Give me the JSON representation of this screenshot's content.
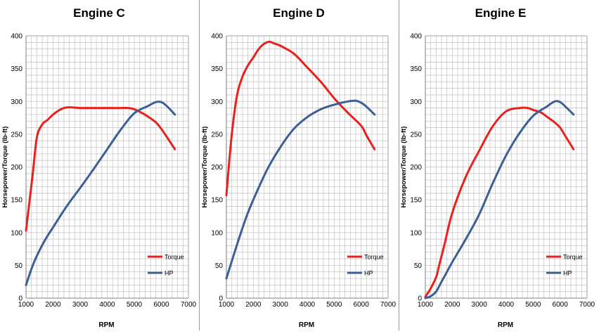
{
  "chart_data": [
    {
      "type": "line",
      "title": "Engine C",
      "xlabel": "RPM",
      "ylabel": "Horsepower/Torque (lb-ft)",
      "xlim": [
        1000,
        7000
      ],
      "ylim": [
        0,
        400
      ],
      "x_ticks": [
        1000,
        2000,
        3000,
        4000,
        5000,
        6000,
        7000
      ],
      "y_ticks": [
        0,
        50,
        100,
        150,
        200,
        250,
        300,
        350,
        400
      ],
      "grid": true,
      "legend_position": "bottom-right",
      "series": [
        {
          "name": "Torque",
          "color": "#e8211d",
          "x": [
            1000,
            1250,
            1400,
            1600,
            1800,
            2000,
            2200,
            2400,
            2600,
            3000,
            3500,
            4000,
            4500,
            4800,
            5000,
            5300,
            5500,
            5800,
            6000,
            6200,
            6500
          ],
          "y": [
            103,
            190,
            245,
            265,
            272,
            280,
            286,
            290,
            291,
            290,
            290,
            290,
            290,
            290,
            288,
            282,
            277,
            268,
            258,
            246,
            227
          ]
        },
        {
          "name": "HP",
          "color": "#3c5f95",
          "x": [
            1000,
            1250,
            1500,
            1750,
            2000,
            2500,
            3000,
            3500,
            4000,
            4500,
            5000,
            5500,
            5800,
            6000,
            6200,
            6500
          ],
          "y": [
            20,
            50,
            73,
            92,
            108,
            140,
            168,
            197,
            227,
            257,
            282,
            293,
            299,
            299,
            293,
            280
          ]
        }
      ]
    },
    {
      "type": "line",
      "title": "Engine D",
      "xlabel": "RPM",
      "ylabel": "Horsepower/Torque (lb-ft)",
      "xlim": [
        1000,
        7000
      ],
      "ylim": [
        0,
        400
      ],
      "x_ticks": [
        1000,
        2000,
        3000,
        4000,
        5000,
        6000,
        7000
      ],
      "y_ticks": [
        0,
        50,
        100,
        150,
        200,
        250,
        300,
        350,
        400
      ],
      "grid": true,
      "legend_position": "bottom-right",
      "series": [
        {
          "name": "Torque",
          "color": "#e8211d",
          "x": [
            1000,
            1200,
            1400,
            1600,
            1800,
            2000,
            2200,
            2400,
            2600,
            2800,
            3000,
            3500,
            4000,
            4500,
            5000,
            5500,
            6000,
            6200,
            6500
          ],
          "y": [
            157,
            250,
            310,
            338,
            355,
            367,
            380,
            388,
            391,
            388,
            385,
            373,
            352,
            330,
            305,
            283,
            263,
            248,
            227
          ]
        },
        {
          "name": "HP",
          "color": "#3c5f95",
          "x": [
            1000,
            1250,
            1500,
            1750,
            2000,
            2500,
            3000,
            3500,
            4000,
            4500,
            5000,
            5500,
            5800,
            6000,
            6200,
            6500
          ],
          "y": [
            30,
            63,
            95,
            125,
            150,
            195,
            230,
            258,
            276,
            288,
            295,
            300,
            301,
            298,
            292,
            280
          ]
        }
      ]
    },
    {
      "type": "line",
      "title": "Engine E",
      "xlabel": "RPM",
      "ylabel": "Horsepower/Torque (lb-ft)",
      "xlim": [
        1000,
        7000
      ],
      "ylim": [
        0,
        400
      ],
      "x_ticks": [
        1000,
        2000,
        3000,
        4000,
        5000,
        6000,
        7000
      ],
      "y_ticks": [
        0,
        50,
        100,
        150,
        200,
        250,
        300,
        350,
        400
      ],
      "grid": true,
      "legend_position": "bottom-right",
      "series": [
        {
          "name": "Torque",
          "color": "#e8211d",
          "x": [
            1000,
            1200,
            1400,
            1500,
            1700,
            2000,
            2500,
            3000,
            3500,
            4000,
            4500,
            4800,
            5000,
            5300,
            5500,
            5800,
            6000,
            6200,
            6500
          ],
          "y": [
            2,
            15,
            32,
            48,
            80,
            130,
            185,
            225,
            262,
            285,
            290,
            290,
            287,
            283,
            277,
            268,
            260,
            247,
            227
          ]
        },
        {
          "name": "HP",
          "color": "#3c5f95",
          "x": [
            1000,
            1200,
            1400,
            1600,
            1800,
            2000,
            2500,
            3000,
            3500,
            4000,
            4500,
            5000,
            5500,
            5800,
            6000,
            6200,
            6500
          ],
          "y": [
            0,
            3,
            10,
            25,
            40,
            55,
            90,
            128,
            175,
            218,
            252,
            278,
            292,
            300,
            299,
            292,
            280
          ]
        }
      ]
    }
  ]
}
